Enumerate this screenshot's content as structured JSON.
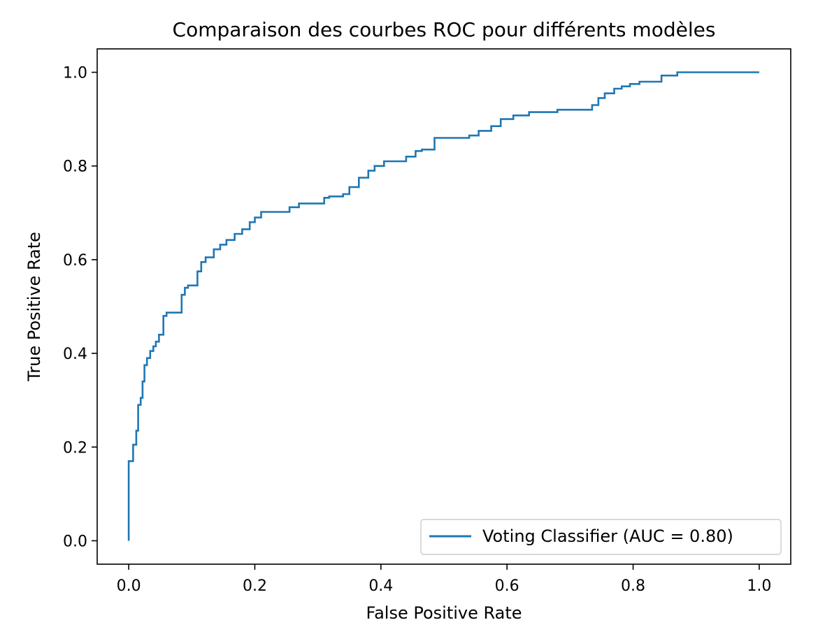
{
  "chart_data": {
    "type": "line",
    "title": "Comparaison des courbes ROC pour différents modèles",
    "xlabel": "False Positive Rate",
    "ylabel": "True Positive Rate",
    "xlim": [
      -0.05,
      1.05
    ],
    "ylim": [
      -0.05,
      1.05
    ],
    "xticks": [
      "0.0",
      "0.2",
      "0.4",
      "0.6",
      "0.8",
      "1.0"
    ],
    "yticks": [
      "0.0",
      "0.2",
      "0.4",
      "0.6",
      "0.8",
      "1.0"
    ],
    "xtick_values": [
      0.0,
      0.2,
      0.4,
      0.6,
      0.8,
      1.0
    ],
    "ytick_values": [
      0.0,
      0.2,
      0.4,
      0.6,
      0.8,
      1.0
    ],
    "grid": false,
    "legend_position": "lower-right",
    "series": [
      {
        "name": "Voting Classifier (AUC = 0.80)",
        "color": "#1f77b4",
        "x": [
          0.0,
          0.0,
          0.007,
          0.007,
          0.012,
          0.012,
          0.015,
          0.015,
          0.019,
          0.019,
          0.022,
          0.022,
          0.025,
          0.025,
          0.029,
          0.029,
          0.034,
          0.034,
          0.039,
          0.039,
          0.043,
          0.043,
          0.048,
          0.048,
          0.055,
          0.055,
          0.06,
          0.06,
          0.067,
          0.067,
          0.084,
          0.084,
          0.089,
          0.089,
          0.094,
          0.094,
          0.109,
          0.109,
          0.115,
          0.115,
          0.122,
          0.122,
          0.135,
          0.135,
          0.145,
          0.145,
          0.155,
          0.155,
          0.168,
          0.168,
          0.18,
          0.18,
          0.192,
          0.192,
          0.2,
          0.2,
          0.21,
          0.21,
          0.255,
          0.255,
          0.27,
          0.27,
          0.31,
          0.31,
          0.318,
          0.318,
          0.34,
          0.34,
          0.35,
          0.35,
          0.365,
          0.365,
          0.38,
          0.38,
          0.39,
          0.39,
          0.405,
          0.405,
          0.44,
          0.44,
          0.455,
          0.455,
          0.465,
          0.465,
          0.485,
          0.485,
          0.54,
          0.54,
          0.555,
          0.555,
          0.575,
          0.575,
          0.59,
          0.59,
          0.61,
          0.61,
          0.635,
          0.635,
          0.68,
          0.68,
          0.735,
          0.735,
          0.745,
          0.745,
          0.755,
          0.755,
          0.77,
          0.77,
          0.782,
          0.782,
          0.795,
          0.795,
          0.81,
          0.81,
          0.845,
          0.845,
          0.87,
          0.87,
          1.0
        ],
        "y": [
          0.0,
          0.17,
          0.17,
          0.205,
          0.205,
          0.235,
          0.235,
          0.29,
          0.29,
          0.305,
          0.305,
          0.34,
          0.34,
          0.375,
          0.375,
          0.39,
          0.39,
          0.405,
          0.405,
          0.415,
          0.415,
          0.425,
          0.425,
          0.44,
          0.44,
          0.48,
          0.48,
          0.487,
          0.487,
          0.487,
          0.487,
          0.525,
          0.525,
          0.54,
          0.54,
          0.545,
          0.545,
          0.575,
          0.575,
          0.595,
          0.595,
          0.605,
          0.605,
          0.622,
          0.622,
          0.632,
          0.632,
          0.642,
          0.642,
          0.655,
          0.655,
          0.665,
          0.665,
          0.68,
          0.68,
          0.69,
          0.69,
          0.702,
          0.702,
          0.712,
          0.712,
          0.72,
          0.72,
          0.732,
          0.732,
          0.735,
          0.735,
          0.74,
          0.74,
          0.755,
          0.755,
          0.775,
          0.775,
          0.79,
          0.79,
          0.8,
          0.8,
          0.81,
          0.81,
          0.82,
          0.82,
          0.832,
          0.832,
          0.835,
          0.835,
          0.86,
          0.86,
          0.865,
          0.865,
          0.875,
          0.875,
          0.885,
          0.885,
          0.9,
          0.9,
          0.908,
          0.908,
          0.915,
          0.915,
          0.92,
          0.92,
          0.93,
          0.93,
          0.945,
          0.945,
          0.955,
          0.955,
          0.965,
          0.965,
          0.97,
          0.97,
          0.975,
          0.975,
          0.98,
          0.98,
          0.993,
          0.993,
          1.0,
          1.0
        ]
      }
    ]
  }
}
